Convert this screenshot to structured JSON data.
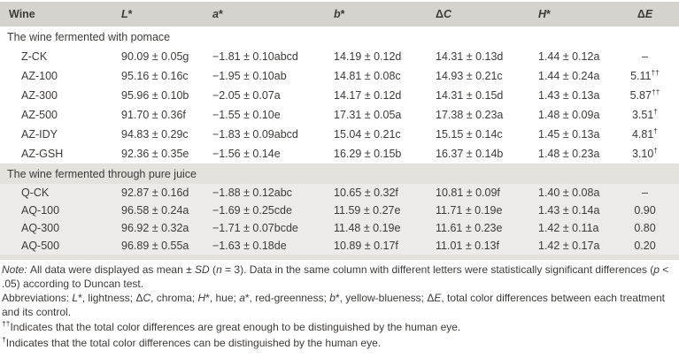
{
  "table": {
    "columns": [
      {
        "key": "wine",
        "segments": [
          {
            "t": "Wine"
          }
        ]
      },
      {
        "key": "L",
        "segments": [
          {
            "t": "L",
            "i": true
          },
          {
            "t": "*"
          }
        ]
      },
      {
        "key": "a",
        "segments": [
          {
            "t": "a",
            "i": true
          },
          {
            "t": "*"
          }
        ]
      },
      {
        "key": "b",
        "segments": [
          {
            "t": "b",
            "i": true
          },
          {
            "t": "*"
          }
        ]
      },
      {
        "key": "dC",
        "segments": [
          {
            "t": "Δ"
          },
          {
            "t": "C",
            "i": true
          }
        ]
      },
      {
        "key": "H",
        "segments": [
          {
            "t": "H",
            "i": true
          },
          {
            "t": "*"
          }
        ]
      },
      {
        "key": "dE",
        "segments": [
          {
            "t": "Δ"
          },
          {
            "t": "E",
            "i": true
          }
        ]
      }
    ],
    "sections": [
      {
        "label": "The wine fermented with pomace",
        "shaded": false,
        "rows": [
          {
            "wine": "Z-CK",
            "L": "90.09 ± 0.05g",
            "a": "−1.81 ± 0.10abcd",
            "b": "14.19 ± 0.12d",
            "dC": "14.31 ± 0.13d",
            "H": "1.44 ± 0.12a",
            "dE": "–",
            "dE_sup": ""
          },
          {
            "wine": "AZ-100",
            "L": "95.16 ± 0.16c",
            "a": "−1.95 ± 0.10ab",
            "b": "14.81 ± 0.08c",
            "dC": "14.93 ± 0.21c",
            "H": "1.44 ± 0.24a",
            "dE": "5.11",
            "dE_sup": "††"
          },
          {
            "wine": "AZ-300",
            "L": "95.96 ± 0.10b",
            "a": "−2.05 ± 0.07a",
            "b": "14.17 ± 0.12d",
            "dC": "14.31 ± 0.15d",
            "H": "1.43 ± 0.13a",
            "dE": "5.87",
            "dE_sup": "††"
          },
          {
            "wine": "AZ-500",
            "L": "91.70 ± 0.36f",
            "a": "−1.55 ± 0.10e",
            "b": "17.31 ± 0.05a",
            "dC": "17.38 ± 0.23a",
            "H": "1.48 ± 0.09a",
            "dE": "3.51",
            "dE_sup": "†"
          },
          {
            "wine": "AZ-IDY",
            "L": "94.83 ± 0.29c",
            "a": "−1.83 ± 0.09abcd",
            "b": "15.04 ± 0.21c",
            "dC": "15.15 ± 0.14c",
            "H": "1.45 ± 0.13a",
            "dE": "4.81",
            "dE_sup": "†"
          },
          {
            "wine": "AZ-GSH",
            "L": "92.36 ± 0.35e",
            "a": "−1.56 ± 0.14e",
            "b": "16.29 ± 0.15b",
            "dC": "16.37 ± 0.14b",
            "H": "1.48 ± 0.23a",
            "dE": "3.10",
            "dE_sup": "†"
          }
        ]
      },
      {
        "label": "The wine fermented through pure juice",
        "shaded": true,
        "rows": [
          {
            "wine": "Q-CK",
            "L": "92.87 ± 0.16d",
            "a": "−1.88 ± 0.12abc",
            "b": "10.65 ± 0.32f",
            "dC": "10.81 ± 0.09f",
            "H": "1.40 ± 0.08a",
            "dE": "–",
            "dE_sup": ""
          },
          {
            "wine": "AQ-100",
            "L": "96.58 ± 0.24a",
            "a": "−1.69 ± 0.25cde",
            "b": "11.59 ± 0.27e",
            "dC": "11.71 ± 0.19e",
            "H": "1.43 ± 0.14a",
            "dE": "0.90",
            "dE_sup": ""
          },
          {
            "wine": "AQ-300",
            "L": "96.92 ± 0.32a",
            "a": "−1.71 ± 0.07bcde",
            "b": "11.48 ± 0.19e",
            "dC": "11.61 ± 0.23e",
            "H": "1.42 ± 0.11a",
            "dE": "0.80",
            "dE_sup": ""
          },
          {
            "wine": "AQ-500",
            "L": "96.89 ± 0.55a",
            "a": "−1.63 ± 0.18de",
            "b": "10.89 ± 0.17f",
            "dC": "11.01 ± 0.13f",
            "H": "1.42 ± 0.17a",
            "dE": "0.20",
            "dE_sup": ""
          }
        ]
      }
    ]
  },
  "notes": {
    "note": [
      {
        "t": "Note: ",
        "i": true
      },
      {
        "t": "All data were displayed as mean ± "
      },
      {
        "t": "SD",
        "i": true
      },
      {
        "t": " ("
      },
      {
        "t": "n",
        "i": true
      },
      {
        "t": " = 3). Data in the same column with different letters were statistically significant differences ("
      },
      {
        "t": "p",
        "i": true
      },
      {
        "t": " < .05) according to Duncan test."
      }
    ],
    "abbreviations": [
      {
        "t": "Abbreviations: "
      },
      {
        "t": "L",
        "i": true
      },
      {
        "t": "*, lightness; Δ"
      },
      {
        "t": "C",
        "i": true
      },
      {
        "t": ", chroma; "
      },
      {
        "t": "H",
        "i": true
      },
      {
        "t": "*, hue; "
      },
      {
        "t": "a",
        "i": true
      },
      {
        "t": "*, red-greenness; "
      },
      {
        "t": "b",
        "i": true
      },
      {
        "t": "*, yellow-blueness; Δ"
      },
      {
        "t": "E",
        "i": true
      },
      {
        "t": ", total color differences between each treatment and its control."
      }
    ],
    "footnote_double_dagger": [
      {
        "t": "††",
        "sup": true
      },
      {
        "t": "Indicates that the total color differences are great enough to be distinguished by the human eye."
      }
    ],
    "footnote_dagger": [
      {
        "t": "†",
        "sup": true
      },
      {
        "t": "Indicates that the total color differences can be distinguished by the human eye."
      }
    ]
  },
  "colors": {
    "header_band": "#d6d3ce",
    "section_band": "#e5e2de",
    "section_rows": "#edebe8",
    "text": "#3d3b38",
    "background": "#ffffff"
  }
}
